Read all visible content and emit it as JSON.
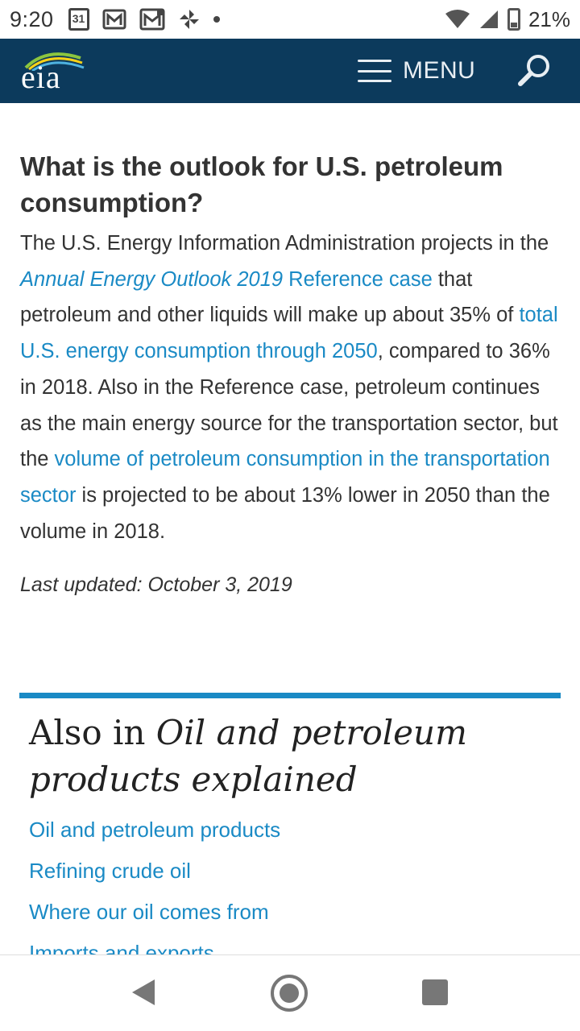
{
  "status_bar": {
    "time": "9:20",
    "calendar_day": "31",
    "battery": "21%",
    "icons": [
      "calendar-icon",
      "gmail-icon",
      "gmail-icon",
      "pinwheel-icon",
      "notification-dot-icon",
      "wifi-icon",
      "signal-icon",
      "battery-icon"
    ]
  },
  "header": {
    "logo_text": "eia",
    "menu_label": "MENU",
    "brand_color": "#0c3a5c"
  },
  "article": {
    "question": "What is the outlook for U.S. petroleum consumption?",
    "p": {
      "t1": "The U.S. Energy Information Administration projects in the ",
      "link1": "Annual Energy Outlook 2019",
      "link1b": " Reference case",
      "t2": " that petroleum and other liquids will make up about 35% of ",
      "link2": "total U.S. energy consumption through 2050",
      "t3": ", compared to 36% in 2018. Also in the Reference case, petroleum continues as the main energy source for the transportation sector, but the ",
      "link3": "volume of petroleum consumption in the transportation sector",
      "t4": " is projected to be about 13% lower in 2050 than the volume in 2018."
    },
    "last_updated": "Last updated: October 3, 2019"
  },
  "also": {
    "title_prefix": "Also in ",
    "title_italic": "Oil and petroleum products explained",
    "links": [
      "Oil and petroleum products",
      "Refining crude oil",
      "Where our oil comes from",
      "Imports and exports"
    ],
    "accent_color": "#1a8ac5"
  }
}
